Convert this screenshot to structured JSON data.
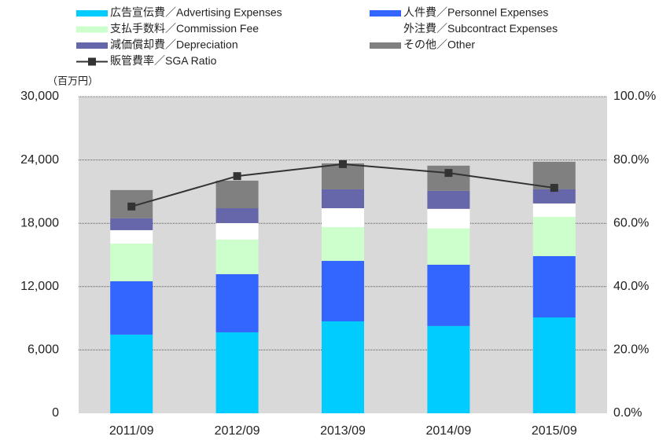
{
  "chart_data": {
    "type": "bar",
    "y_unit_label": "（百万円）",
    "categories": [
      "2011/09",
      "2012/09",
      "2013/09",
      "2014/09",
      "2015/09"
    ],
    "series": [
      {
        "name": "広告宣伝費／Advertising Expenses",
        "color": "#00ccff",
        "values": [
          7450,
          7670,
          8710,
          8270,
          9080
        ]
      },
      {
        "name": "人件費／Personnel Expenses",
        "color": "#3366ff",
        "values": [
          5060,
          5510,
          5730,
          5810,
          5810
        ]
      },
      {
        "name": "支払手数料／Commission Fee",
        "color": "#ccffcc",
        "values": [
          3570,
          3280,
          3200,
          3430,
          3720
        ]
      },
      {
        "name": "外注費／Subcontract Expenses",
        "color": "#ffffff",
        "values": [
          1270,
          1560,
          1790,
          1860,
          1270
        ]
      },
      {
        "name": "減価償却費／Depreciation",
        "color": "#6666aa",
        "values": [
          1120,
          1410,
          1790,
          1710,
          1340
        ]
      },
      {
        "name": "その他／Other",
        "color": "#808080",
        "values": [
          2680,
          2610,
          2460,
          2380,
          2610
        ]
      },
      {
        "name": "販管費率／SGA Ratio",
        "color": "#333333",
        "type": "line",
        "axis": "y2",
        "values": [
          65.3,
          74.9,
          78.7,
          75.9,
          71.2
        ]
      }
    ],
    "ylim": [
      0,
      30000
    ],
    "yticks": [
      0,
      {
        "value": 6000,
        "label": "6,000"
      },
      {
        "value": 12000,
        "label": "12,000"
      },
      {
        "value": 18000,
        "label": "18,000"
      },
      {
        "value": 24000,
        "label": "24,000"
      },
      {
        "value": 30000,
        "label": "30,000"
      }
    ],
    "y2lim": [
      0,
      100
    ],
    "y2ticks": [
      {
        "value": 0,
        "label": "0.0%"
      },
      {
        "value": 20,
        "label": "20.0%"
      },
      {
        "value": 40,
        "label": "40.0%"
      },
      {
        "value": 60,
        "label": "60.0%"
      },
      {
        "value": 80,
        "label": "80.0%"
      },
      {
        "value": 100,
        "label": "100.0%"
      }
    ],
    "grid": true
  }
}
